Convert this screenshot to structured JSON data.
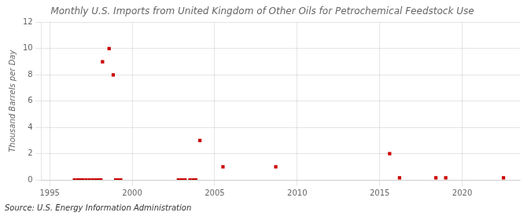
{
  "chart_data": {
    "type": "scatter",
    "title": "Monthly U.S. Imports from United Kingdom of Other Oils for Petrochemical Feedstock Use",
    "ylabel": "Thousand Barrels per Day",
    "source": "Source: U.S. Energy Information Administration",
    "color": "#cc0000",
    "marker": "square",
    "grid": true,
    "xlim": [
      1994.5,
      2023.5
    ],
    "ylim": [
      0,
      12
    ],
    "xticks": [
      1995,
      2000,
      2005,
      2010,
      2015,
      2020
    ],
    "yticks": [
      0,
      2,
      4,
      6,
      8,
      10,
      12
    ],
    "x": [
      1996.5,
      1996.7,
      1996.9,
      1997.0,
      1997.2,
      1997.4,
      1997.6,
      1997.8,
      1998.0,
      1998.1,
      1998.2,
      1998.6,
      1998.85,
      1999.0,
      1999.1,
      1999.2,
      1999.3,
      2002.8,
      2003.0,
      2003.2,
      2003.5,
      2003.7,
      2003.85,
      2004.1,
      2005.5,
      2008.7,
      2015.6,
      2016.2,
      2018.4,
      2019.0,
      2022.5
    ],
    "values": [
      0.0,
      0.0,
      0.0,
      0.0,
      0.0,
      0.0,
      0.0,
      0.0,
      0.0,
      0.0,
      9.0,
      10.0,
      8.0,
      0.0,
      0.0,
      0.0,
      0.0,
      0.0,
      0.0,
      0.0,
      0.0,
      0.0,
      0.0,
      3.0,
      1.0,
      1.0,
      2.0,
      0.15,
      0.15,
      0.15,
      0.15
    ]
  }
}
